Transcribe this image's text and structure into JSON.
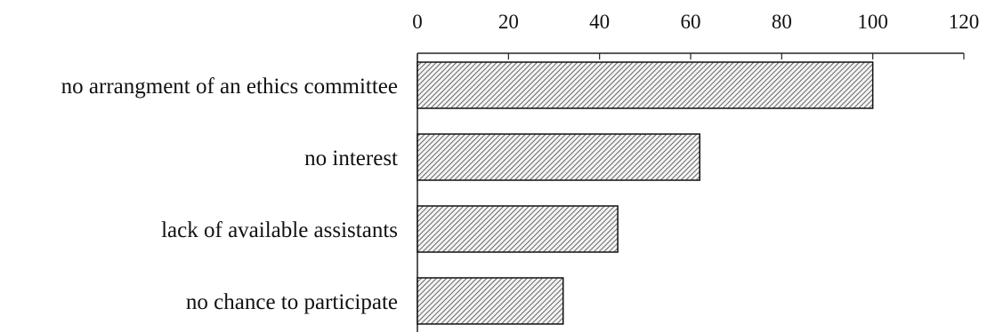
{
  "chart_data": {
    "type": "bar",
    "orientation": "horizontal",
    "title": "",
    "xlabel": "",
    "ylabel": "",
    "categories": [
      "no arrangment of an ethics committee",
      "no interest",
      "lack of available assistants",
      "no chance to participate"
    ],
    "values": [
      100,
      62,
      44,
      32
    ],
    "xlim": [
      0,
      120
    ],
    "xticks": [
      0,
      20,
      40,
      60,
      80,
      100,
      120
    ],
    "x_axis_position": "top",
    "grid": false,
    "legend": "none",
    "bar_fill": "hatched",
    "colors": {
      "bar_hatch": "#444444",
      "bar_border": "#111111",
      "axis": "#222222",
      "text": "#111111"
    }
  }
}
